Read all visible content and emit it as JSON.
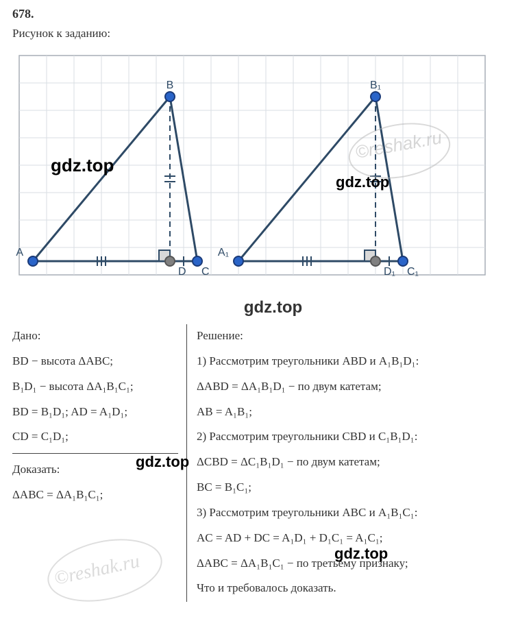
{
  "problem_number": "678.",
  "figure_caption": "Рисунок к заданию:",
  "watermarks": {
    "gdz": "gdz.top",
    "reshak": "©reshak.ru"
  },
  "diagram": {
    "grid": {
      "cell_size": 40,
      "cols": 17,
      "rows": 8,
      "line_color": "#d8dde3",
      "border_color": "#a7adb5",
      "background": "#ffffff"
    },
    "triangles": [
      {
        "label_set": {
          "A": "A",
          "B": "B",
          "C": "C",
          "D": "D"
        },
        "vertices": {
          "A": {
            "gx": 0.5,
            "gy": 7.5
          },
          "B": {
            "gx": 5.5,
            "gy": 1.5
          },
          "C": {
            "gx": 6.5,
            "gy": 7.5
          },
          "D": {
            "gx": 5.5,
            "gy": 7.5
          }
        },
        "stroke_color": "#2e4a66",
        "stroke_width": 3,
        "vertex_fill": "#2a64c8",
        "vertex_border": "#1a3a78",
        "vertex_radius": 7,
        "alt_vertex_fill": "#808080",
        "dashed_color": "#2e4a66"
      },
      {
        "label_set": {
          "A": "A₁",
          "B": "B₁",
          "C": "C₁",
          "D": "D₁"
        },
        "vertices": {
          "A": {
            "gx": 8.0,
            "gy": 7.5
          },
          "B": {
            "gx": 13.0,
            "gy": 1.5
          },
          "C": {
            "gx": 14.0,
            "gy": 7.5
          },
          "D": {
            "gx": 13.0,
            "gy": 7.5
          }
        },
        "stroke_color": "#2e4a66",
        "stroke_width": 3,
        "vertex_fill": "#2a64c8",
        "vertex_border": "#1a3a78",
        "vertex_radius": 7,
        "alt_vertex_fill": "#808080",
        "dashed_color": "#2e4a66"
      }
    ],
    "label_font_size": 16,
    "label_color": "#2e4a66",
    "tick_color": "#2e4a66"
  },
  "given": {
    "heading": "Дано:",
    "lines": [
      "BD − высота ΔABC;",
      "B₁D₁ − высота ΔA₁B₁C₁;",
      "BD = B₁D₁;  AD = A₁D₁;",
      "CD = C₁D₁;"
    ]
  },
  "prove": {
    "heading": "Доказать:",
    "lines": [
      "ΔABC = ΔA₁B₁C₁;"
    ]
  },
  "solution": {
    "heading": "Решение:",
    "lines": [
      "1) Рассмотрим треугольники ABD и A₁B₁D₁:",
      "ΔABD = ΔA₁B₁D₁ − по двум катетам;",
      "AB = A₁B₁;",
      "2) Рассмотрим треугольники CBD и C₁B₁D₁:",
      "ΔCBD = ΔC₁B₁D₁ − по двум катетам;",
      "BC = B₁C₁;",
      "3) Рассмотрим треугольники ABC и A₁B₁C₁:",
      "AC = AD + DC = A₁D₁ + D₁C₁ = A₁C₁;",
      "ΔABC = ΔA₁B₁C₁ − по третьему признаку;",
      "Что и требовалось доказать."
    ]
  }
}
